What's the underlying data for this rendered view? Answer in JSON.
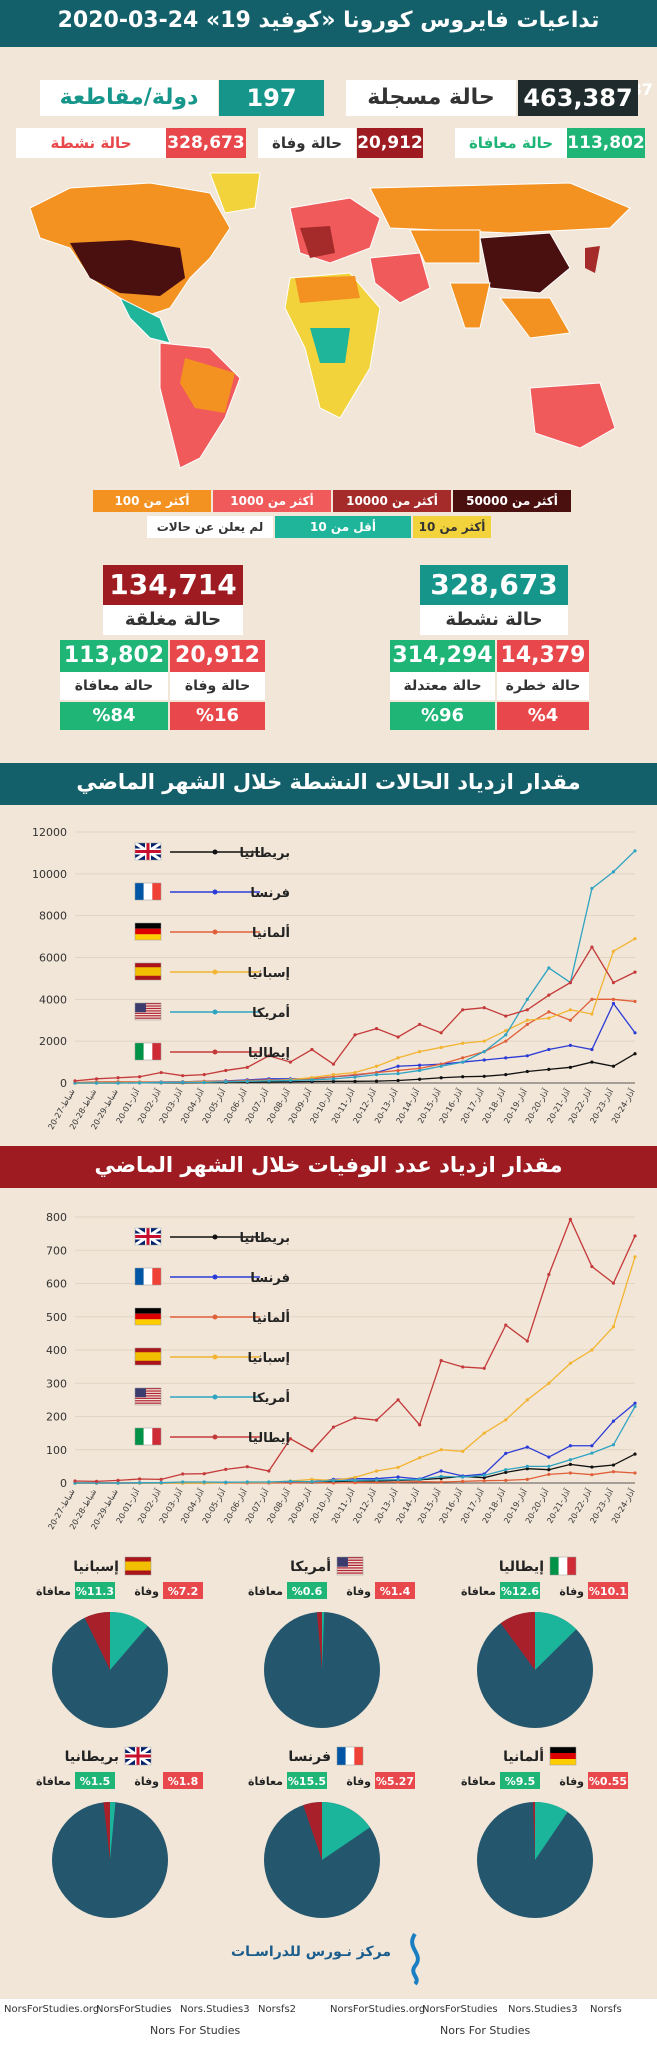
{
  "header": {
    "title": "تداعيات فايروس كورونا «كوفيد 19» 24-03-2020"
  },
  "totals": {
    "registered_value": "463,387",
    "registered_label": "حالة مسجلة",
    "countries_value": "197",
    "countries_label": "دولة/مقاطعة",
    "recovered_value": "113,802",
    "recovered_label": "حالة معافاة",
    "deaths_value": "20,912",
    "deaths_label": "حالة وفاة",
    "active_value": "328,673",
    "active_label": "حالة نشطة"
  },
  "map_legend": {
    "items": [
      "أكثر من 50000",
      "أكثر من 10000",
      "أكثر من 1000",
      "أكثر من 100",
      "أكثر من 10",
      "أقل من 10",
      "لم يعلن عن حالات"
    ],
    "colors": [
      "#4a0f0f",
      "#a52a2a",
      "#f05a5a",
      "#f39221",
      "#f2d33c",
      "#1fb59a",
      "#ffffff"
    ]
  },
  "closed": {
    "value": "134,714",
    "label": "حالة مغلقة",
    "deaths_value": "20,912",
    "deaths_label": "حالة وفاة",
    "deaths_pct": "%16",
    "recovered_value": "113,802",
    "recovered_label": "حالة معافاة",
    "recovered_pct": "%84"
  },
  "active": {
    "value": "328,673",
    "label": "حالة نشطة",
    "critical_value": "14,379",
    "critical_label": "حالة خطرة",
    "critical_pct": "%4",
    "mild_value": "314,294",
    "mild_label": "حالة معتدلة",
    "mild_pct": "%96"
  },
  "section1": {
    "title": "مقدار ازدياد الحالات النشطة خلال الشهر الماضي"
  },
  "section2": {
    "title": "مقدار ازدياد عدد الوفيات خلال الشهر الماضي"
  },
  "colors": {
    "dark_red": "#9e1b22",
    "teal": "#16958a",
    "green": "#1fb577",
    "red": "#e8484b",
    "dark": "#1f2b2c",
    "pie_main": "#24566d",
    "pie_death": "#a8202a",
    "pie_recovered": "#1ab59a"
  },
  "chart_data": [
    {
      "type": "line",
      "title": "مقدار ازدياد الحالات النشطة خلال الشهر الماضي",
      "ylim": [
        0,
        12000
      ],
      "yticks": [
        "0",
        "2000",
        "4000",
        "6000",
        "8000",
        "10000",
        "12000"
      ],
      "x": [
        "20-شباط-27",
        "20-شباط-28",
        "20-شباط-29",
        "20-آذار-01",
        "20-آذار-02",
        "20-آذار-03",
        "20-آذار-04",
        "20-آذار-05",
        "20-آذار-06",
        "20-آذار-07",
        "20-آذار-08",
        "20-آذار-09",
        "20-آذار-10",
        "20-آذار-11",
        "20-آذار-12",
        "20-آذار-13",
        "20-آذار-14",
        "20-آذار-15",
        "20-آذار-16",
        "20-آذار-17",
        "20-آذار-18",
        "20-آذار-19",
        "20-آذار-20",
        "20-آذار-21",
        "20-آذار-22",
        "20-آذار-23",
        "20-آذار-24"
      ],
      "series": [
        {
          "name": "بريطانيا",
          "color": "#111111",
          "values": [
            0,
            0,
            0,
            10,
            10,
            10,
            30,
            30,
            40,
            50,
            60,
            70,
            80,
            80,
            90,
            120,
            180,
            250,
            300,
            320,
            400,
            550,
            650,
            750,
            1000,
            800,
            1400
          ]
        },
        {
          "name": "فرنسا",
          "color": "#2b3bd6",
          "values": [
            10,
            20,
            30,
            40,
            50,
            60,
            80,
            100,
            150,
            200,
            200,
            210,
            300,
            370,
            500,
            800,
            850,
            900,
            1000,
            1100,
            1200,
            1300,
            1600,
            1800,
            1600,
            3800,
            2400
          ]
        },
        {
          "name": "ألمانيا",
          "color": "#e0603a",
          "values": [
            20,
            50,
            60,
            50,
            40,
            50,
            80,
            80,
            120,
            150,
            120,
            200,
            300,
            400,
            500,
            600,
            700,
            900,
            1200,
            1500,
            2000,
            2800,
            3400,
            3000,
            4000,
            4000,
            3900
          ]
        },
        {
          "name": "إسبانيا",
          "color": "#f2b431",
          "values": [
            0,
            10,
            10,
            20,
            30,
            40,
            50,
            60,
            80,
            120,
            160,
            260,
            400,
            500,
            800,
            1200,
            1500,
            1700,
            1900,
            2000,
            2500,
            3000,
            3100,
            3500,
            3300,
            6300,
            6900
          ]
        },
        {
          "name": "أمريكا",
          "color": "#2fa3c2",
          "values": [
            0,
            0,
            0,
            10,
            20,
            30,
            30,
            60,
            80,
            100,
            120,
            150,
            200,
            280,
            400,
            450,
            600,
            800,
            1000,
            1500,
            2300,
            4000,
            5500,
            4800,
            9300,
            10100,
            11100
          ]
        },
        {
          "name": "إيطاليا",
          "color": "#c43a3a",
          "values": [
            100,
            200,
            250,
            300,
            500,
            350,
            400,
            600,
            750,
            1300,
            1000,
            1600,
            900,
            2300,
            2600,
            2200,
            2800,
            2400,
            3500,
            3600,
            3200,
            3500,
            4200,
            4800,
            6500,
            4800,
            5300
          ]
        }
      ]
    },
    {
      "type": "line",
      "title": "مقدار ازدياد عدد الوفيات خلال الشهر الماضي",
      "ylim": [
        0,
        800
      ],
      "yticks": [
        "0",
        "100",
        "200",
        "300",
        "400",
        "500",
        "600",
        "700",
        "800"
      ],
      "x": [
        "20-شباط-27",
        "20-شباط-28",
        "20-شباط-29",
        "20-آذار-01",
        "20-آذار-02",
        "20-آذار-03",
        "20-آذار-04",
        "20-آذار-05",
        "20-آذار-06",
        "20-آذار-07",
        "20-آذار-08",
        "20-آذار-09",
        "20-آذار-10",
        "20-آذار-11",
        "20-آذار-12",
        "20-آذار-13",
        "20-آذار-14",
        "20-آذار-15",
        "20-آذار-16",
        "20-آذار-17",
        "20-آذار-18",
        "20-آذار-19",
        "20-آذار-20",
        "20-آذار-21",
        "20-آذار-22",
        "20-آذار-23",
        "20-آذار-24"
      ],
      "series": [
        {
          "name": "بريطانيا",
          "color": "#111111",
          "values": [
            0,
            0,
            0,
            0,
            0,
            0,
            0,
            1,
            1,
            1,
            2,
            2,
            4,
            6,
            6,
            8,
            10,
            14,
            20,
            16,
            32,
            43,
            40,
            56,
            48,
            54,
            87
          ]
        },
        {
          "name": "فرنسا",
          "color": "#2b3bd6",
          "values": [
            0,
            0,
            0,
            0,
            1,
            1,
            1,
            2,
            2,
            2,
            3,
            4,
            11,
            13,
            13,
            18,
            12,
            36,
            21,
            27,
            89,
            108,
            78,
            112,
            112,
            186,
            240
          ]
        },
        {
          "name": "ألمانيا",
          "color": "#e0603a",
          "values": [
            0,
            0,
            0,
            0,
            0,
            0,
            0,
            0,
            0,
            0,
            0,
            2,
            0,
            1,
            2,
            3,
            4,
            3,
            5,
            7,
            8,
            11,
            26,
            30,
            25,
            34,
            30
          ]
        },
        {
          "name": "إسبانيا",
          "color": "#f2b431",
          "values": [
            0,
            0,
            0,
            0,
            0,
            0,
            0,
            1,
            2,
            2,
            6,
            11,
            8,
            17,
            36,
            47,
            76,
            100,
            95,
            150,
            190,
            250,
            300,
            360,
            400,
            470,
            680
          ]
        },
        {
          "name": "أمريكا",
          "color": "#2fa3c2",
          "values": [
            0,
            0,
            0,
            1,
            1,
            3,
            3,
            2,
            3,
            3,
            5,
            4,
            7,
            8,
            9,
            10,
            11,
            20,
            18,
            23,
            40,
            50,
            50,
            70,
            90,
            115,
            230
          ]
        },
        {
          "name": "إيطاليا",
          "color": "#c43a3a",
          "values": [
            6,
            5,
            8,
            12,
            11,
            27,
            28,
            41,
            49,
            36,
            133,
            97,
            168,
            196,
            189,
            250,
            175,
            368,
            349,
            345,
            475,
            427,
            627,
            793,
            651,
            601,
            743
          ]
        }
      ]
    },
    {
      "type": "pie",
      "charts": [
        {
          "country": "إيطاليا",
          "death_label": "وفاة",
          "death_pct": "%10.1",
          "recovered_label": "معافاة",
          "recovered_pct": "%12.6",
          "death": 10.1,
          "recovered": 12.6
        },
        {
          "country": "أمريكا",
          "death_label": "وفاة",
          "death_pct": "%1.4",
          "recovered_label": "معافاة",
          "recovered_pct": "%0.6",
          "death": 1.4,
          "recovered": 0.6
        },
        {
          "country": "إسبانيا",
          "death_label": "وفاة",
          "death_pct": "%7.2",
          "recovered_label": "معافاة",
          "recovered_pct": "%11.3",
          "death": 7.2,
          "recovered": 11.3
        },
        {
          "country": "ألمانيا",
          "death_label": "وفاة",
          "death_pct": "%0.55",
          "recovered_label": "معافاة",
          "recovered_pct": "%9.5",
          "death": 0.55,
          "recovered": 9.5
        },
        {
          "country": "فرنسا",
          "death_label": "وفاة",
          "death_pct": "%5.27",
          "recovered_label": "معافاة",
          "recovered_pct": "%15.5",
          "death": 5.27,
          "recovered": 15.5
        },
        {
          "country": "بريطانيا",
          "death_label": "وفاة",
          "death_pct": "%1.8",
          "recovered_label": "معافاة",
          "recovered_pct": "%1.5",
          "death": 1.8,
          "recovered": 1.5
        }
      ]
    }
  ],
  "footer": {
    "org_arabic": "مركز نـورس للدراسـات",
    "org_english": "Nors For Studies",
    "social": [
      "NorsForStudies.org",
      "NorsForStudies",
      "Nors.Studies3",
      "Norsfs2",
      "NorsForStudies.org",
      "NorsForStudies",
      "Nors.Studies3",
      "Norsfs"
    ]
  }
}
